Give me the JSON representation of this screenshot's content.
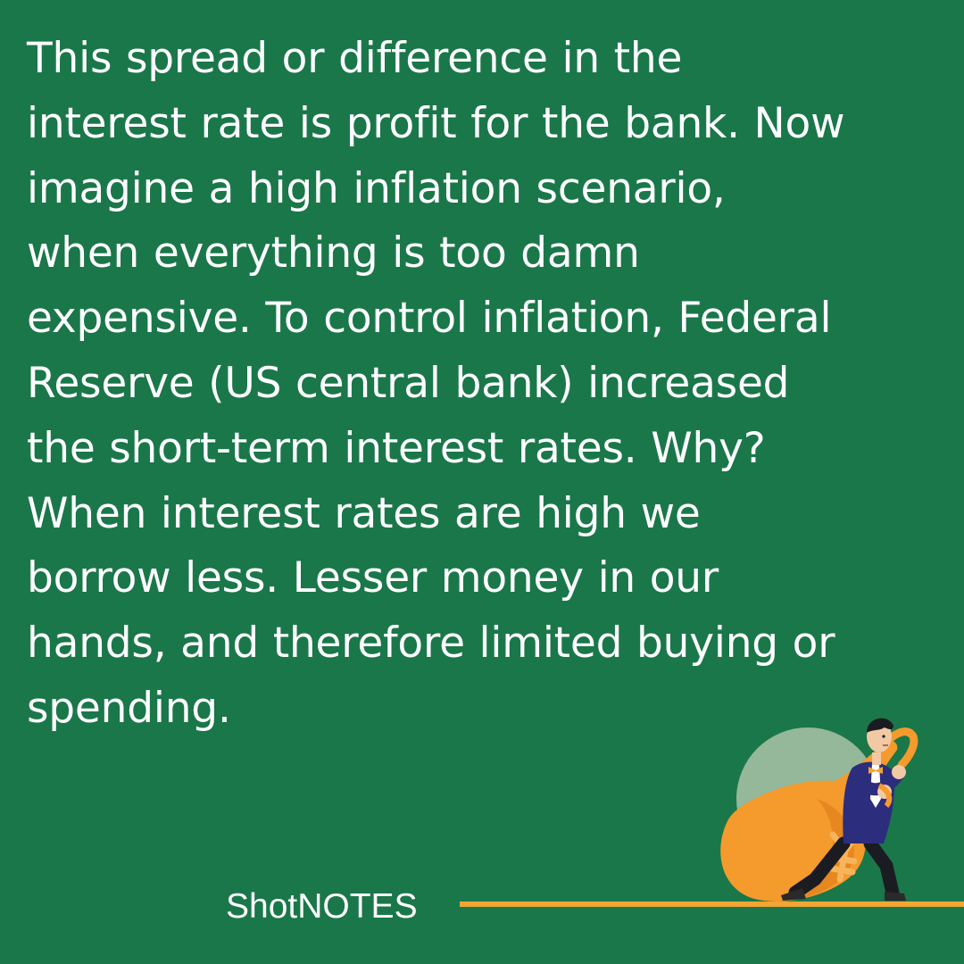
{
  "body": {
    "lines": [
      "This spread or difference in the",
      "interest rate is profit for the bank. Now",
      "imagine a high inflation scenario,",
      "when everything is too damn",
      "expensive. To control inflation, Federal",
      "Reserve (US central bank) increased",
      "the short-term interest rates. Why?",
      "When interest rates are high we",
      "borrow less. Lesser money in our",
      "hands, and therefore limited buying or",
      "spending."
    ]
  },
  "brand": {
    "name": "ShotNOTES"
  },
  "illustration": {
    "subject": "businessman pulling a money sack",
    "currency_symbol": "¥"
  },
  "colors": {
    "background": "#1a774a",
    "text": "#ffffff",
    "accent": "#f2a533",
    "sack": "#f59a2c",
    "circle": "#b4c7ae",
    "suit": "#2d2d7d"
  }
}
